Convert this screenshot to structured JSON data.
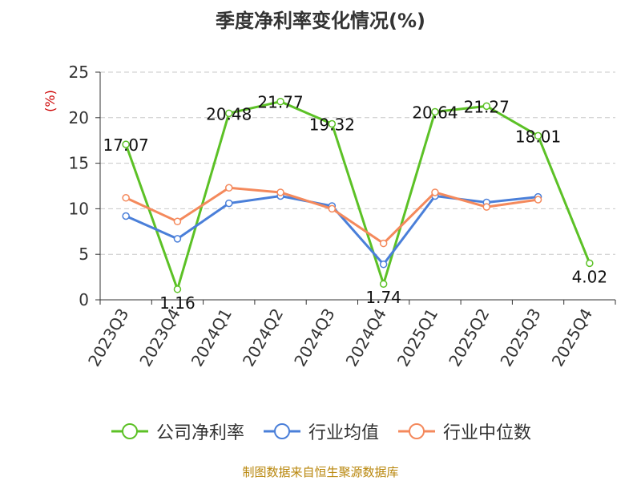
{
  "chart_data": {
    "type": "line",
    "title": "季度净利率变化情况(%)",
    "ylabel": "(%)",
    "xlabel": "",
    "ylim": [
      0,
      25
    ],
    "yticks": [
      0,
      5,
      10,
      15,
      20,
      25
    ],
    "grid": true,
    "legend_position": "bottom",
    "categories": [
      "2023Q3",
      "2023Q4",
      "2024Q1",
      "2024Q2",
      "2024Q3",
      "2024Q4",
      "2025Q1",
      "2025Q2",
      "2025Q3",
      "2025Q4"
    ],
    "series": [
      {
        "name": "公司净利率",
        "color": "#5cc126",
        "values": [
          17.07,
          1.16,
          20.48,
          21.77,
          19.32,
          1.74,
          20.64,
          21.27,
          18.01,
          4.02
        ],
        "labels": [
          "17.07",
          "1.16",
          "20.48",
          "21.77",
          "19.32",
          "1.74",
          "20.64",
          "21.27",
          "18.01",
          "4.02"
        ]
      },
      {
        "name": "行业均值",
        "color": "#4a7fd9",
        "values": [
          9.2,
          6.7,
          10.6,
          11.4,
          10.3,
          3.9,
          11.4,
          10.7,
          11.3,
          null
        ]
      },
      {
        "name": "行业中位数",
        "color": "#f4895c",
        "values": [
          11.2,
          8.6,
          12.3,
          11.8,
          10.0,
          6.2,
          11.8,
          10.2,
          11.0,
          null
        ]
      }
    ],
    "source": "制图数据来自恒生聚源数据库"
  }
}
